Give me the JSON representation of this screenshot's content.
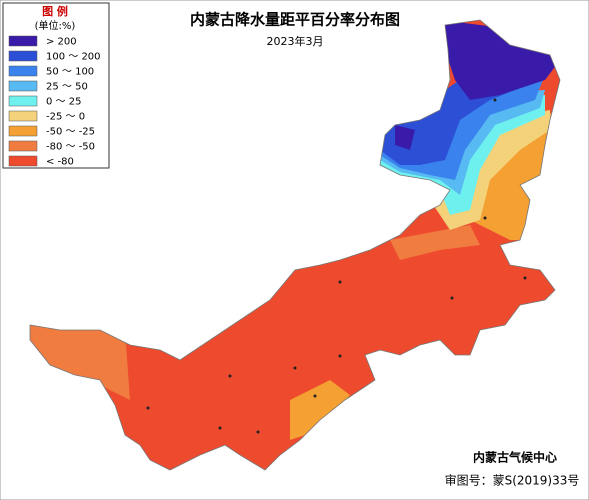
{
  "header": {
    "title": "内蒙古降水量距平百分率分布图",
    "subtitle": "2023年3月"
  },
  "legend": {
    "title": "图 例",
    "unit": "(单位:%)",
    "items": [
      {
        "label": "> 200",
        "color": "#3a1aa8"
      },
      {
        "label": "100 ～ 200",
        "color": "#2c4fd6"
      },
      {
        "label": "50 ～ 100",
        "color": "#3a82ee"
      },
      {
        "label": "25 ～ 50",
        "color": "#58baf2"
      },
      {
        "label": "0 ～ 25",
        "color": "#6ef0ee"
      },
      {
        "label": "-25 ～ 0",
        "color": "#f3d27a"
      },
      {
        "label": "-50 ～ -25",
        "color": "#f4a033"
      },
      {
        "label": "-80 ～ -50",
        "color": "#f07c40"
      },
      {
        "label": "< -80",
        "color": "#ee4a2e"
      }
    ]
  },
  "footer": {
    "agency": "内蒙古气候中心",
    "approval": "审图号：蒙S(2019)33号"
  }
}
